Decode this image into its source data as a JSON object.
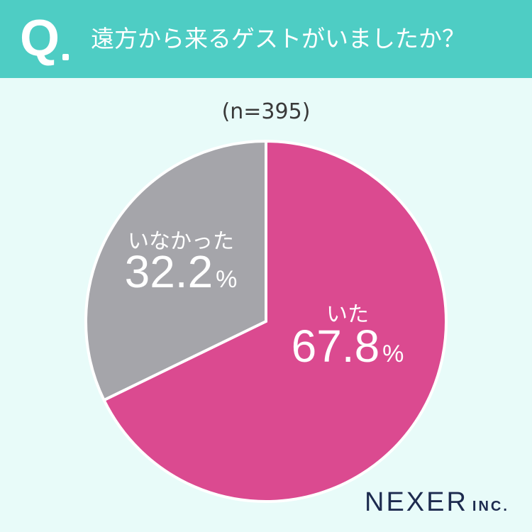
{
  "header": {
    "q_label": "Q",
    "question": "遠方から来るゲストがいましたか？"
  },
  "sample_size": "(n=395)",
  "chart_data": {
    "type": "pie",
    "title": "遠方から来るゲストがいましたか？",
    "subtitle": "(n=395)",
    "slices": [
      {
        "label": "いた",
        "value": 67.8,
        "display": "67.8",
        "unit": "%",
        "color": "#db4a90"
      },
      {
        "label": "いなかった",
        "value": 32.2,
        "display": "32.2",
        "unit": "%",
        "color": "#a5a5aa"
      }
    ],
    "start_angle_deg": 0,
    "direction": "clockwise"
  },
  "brand": {
    "name": "NEXER",
    "suffix": "INC."
  }
}
